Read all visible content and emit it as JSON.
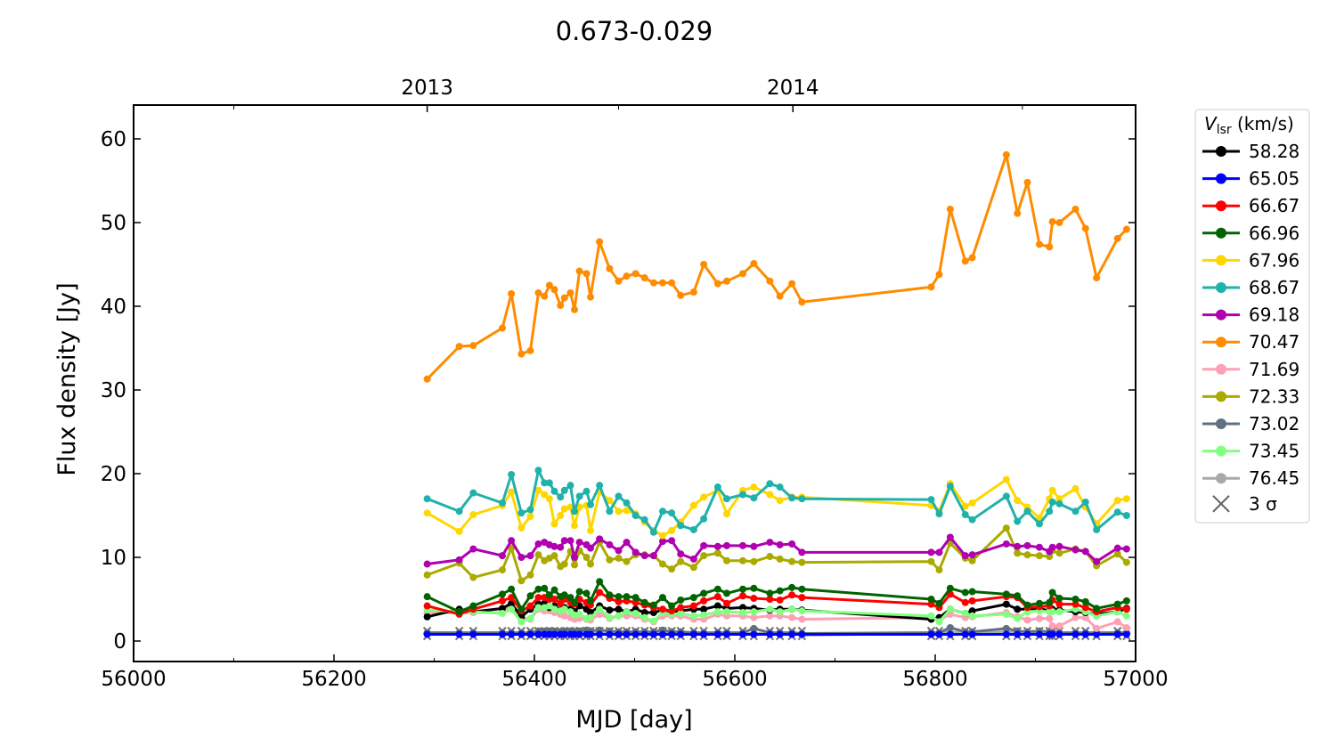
{
  "chart_data": {
    "type": "line",
    "title": "0.673-0.029",
    "xlabel": "MJD [day]",
    "ylabel": "Flux density [Jy]",
    "xlim": [
      56000,
      57000
    ],
    "ylim": [
      -2.3,
      64
    ],
    "xticks": [
      56000,
      56200,
      56400,
      56600,
      56800,
      57000
    ],
    "yticks": [
      0,
      10,
      20,
      30,
      40,
      50,
      60
    ],
    "top_axis": {
      "ticks": [
        {
          "label": "2013",
          "mjd": 56293
        },
        {
          "label": "2014",
          "mjd": 56658
        }
      ]
    },
    "legend": {
      "title": "V_lsr (km/s)",
      "title_main": "V",
      "title_sub": "lsr",
      "title_unit": " (km/s)",
      "placement": "outside-right",
      "sigma_label": "3 σ"
    },
    "x": [
      56293,
      56325,
      56339,
      56368,
      56377,
      56387,
      56396,
      56404,
      56410,
      56415,
      56420,
      56426,
      56430,
      56436,
      56440,
      56445,
      56452,
      56456,
      56465,
      56475,
      56484,
      56492,
      56501,
      56510,
      56519,
      56528,
      56537,
      56546,
      56559,
      56569,
      56583,
      56592,
      56608,
      56619,
      56635,
      56645,
      56657,
      56667,
      56796,
      56804,
      56815,
      56830,
      56837,
      56871,
      56882,
      56892,
      56904,
      56914,
      56917,
      56924,
      56940,
      56950,
      56961,
      56982,
      56991
    ],
    "series": [
      {
        "name": "58.28",
        "color": "#000000",
        "values": [
          2.9,
          3.8,
          3.5,
          3.9,
          4.5,
          2.9,
          3.8,
          4.4,
          4.5,
          4.0,
          4.2,
          3.7,
          4.0,
          3.8,
          3.5,
          4.2,
          3.8,
          3.4,
          4.2,
          3.7,
          3.8,
          3.5,
          3.8,
          3.4,
          3.4,
          3.7,
          3.4,
          3.6,
          3.8,
          3.8,
          4.2,
          3.9,
          4.0,
          3.9,
          3.7,
          3.8,
          3.8,
          3.7,
          2.6,
          2.8,
          3.8,
          3.3,
          3.6,
          4.4,
          3.8,
          3.8,
          3.9,
          3.6,
          3.8,
          3.7,
          3.5,
          3.4,
          3.2,
          3.5,
          3.9
        ]
      },
      {
        "name": "65.05",
        "color": "#0000ff",
        "values": [
          0.8,
          0.8,
          0.8,
          0.8,
          0.8,
          0.8,
          0.8,
          0.8,
          0.8,
          0.8,
          0.8,
          0.8,
          0.8,
          0.8,
          0.8,
          0.8,
          0.8,
          0.8,
          0.8,
          0.8,
          0.8,
          0.8,
          0.8,
          0.8,
          0.8,
          0.8,
          0.8,
          0.8,
          0.8,
          0.8,
          0.8,
          0.8,
          0.8,
          0.8,
          0.8,
          0.8,
          0.8,
          0.8,
          0.8,
          0.8,
          0.8,
          0.8,
          0.8,
          0.8,
          0.8,
          0.8,
          0.8,
          0.8,
          0.8,
          0.8,
          0.8,
          0.8,
          0.8,
          0.8,
          0.8
        ]
      },
      {
        "name": "66.67",
        "color": "#ff0000",
        "values": [
          4.2,
          3.2,
          3.8,
          4.8,
          5.2,
          3.6,
          4.2,
          5.2,
          5.2,
          5.0,
          5.0,
          4.5,
          5.0,
          4.6,
          4.4,
          5.0,
          4.6,
          4.3,
          5.8,
          5.1,
          4.7,
          4.8,
          4.6,
          4.3,
          4.0,
          3.8,
          3.6,
          4.0,
          4.2,
          4.8,
          5.3,
          4.5,
          5.4,
          5.1,
          5.0,
          4.9,
          5.5,
          5.2,
          4.4,
          4.0,
          5.6,
          4.6,
          4.8,
          5.3,
          5.2,
          4.0,
          4.1,
          4.2,
          4.9,
          4.4,
          4.4,
          4.0,
          3.5,
          4.0,
          3.8
        ]
      },
      {
        "name": "66.96",
        "color": "#006400",
        "values": [
          5.3,
          3.5,
          4.2,
          5.6,
          6.2,
          3.8,
          5.4,
          6.2,
          6.3,
          5.5,
          6.1,
          5.3,
          5.5,
          5.2,
          4.6,
          5.9,
          5.7,
          4.8,
          7.1,
          5.5,
          5.3,
          5.3,
          5.2,
          4.6,
          4.3,
          5.2,
          4.2,
          4.9,
          5.2,
          5.7,
          6.2,
          5.7,
          6.2,
          6.3,
          5.7,
          6.0,
          6.4,
          6.2,
          5.0,
          4.5,
          6.3,
          5.8,
          5.9,
          5.6,
          5.4,
          4.3,
          4.5,
          4.6,
          5.8,
          5.1,
          5.0,
          4.7,
          3.9,
          4.4,
          4.8
        ]
      },
      {
        "name": "67.96",
        "color": "#ffd700",
        "values": [
          15.3,
          13.1,
          15.1,
          16.2,
          17.8,
          13.5,
          14.9,
          18.0,
          17.5,
          17.0,
          14.0,
          15.0,
          15.8,
          16.0,
          13.8,
          16.0,
          16.2,
          13.2,
          17.8,
          16.8,
          15.5,
          15.6,
          15.2,
          14.2,
          13.2,
          12.6,
          13.2,
          14.2,
          16.2,
          17.2,
          18.0,
          15.2,
          18.0,
          18.4,
          17.5,
          16.8,
          17.2,
          17.2,
          16.2,
          15.5,
          18.8,
          16.1,
          16.5,
          19.3,
          16.8,
          16.0,
          14.7,
          17.0,
          18.0,
          17.0,
          18.2,
          16.0,
          14.0,
          16.8,
          17.0
        ]
      },
      {
        "name": "68.67",
        "color": "#20b2aa",
        "values": [
          17.0,
          15.5,
          17.7,
          16.5,
          19.9,
          15.3,
          15.7,
          20.4,
          18.9,
          18.9,
          17.9,
          17.2,
          18.0,
          18.6,
          15.5,
          17.3,
          17.9,
          16.3,
          18.6,
          15.5,
          17.3,
          16.5,
          15.0,
          14.5,
          13.0,
          15.5,
          15.3,
          13.8,
          13.3,
          14.6,
          18.4,
          17.0,
          17.5,
          17.1,
          18.8,
          18.4,
          17.1,
          17.0,
          16.9,
          15.2,
          18.5,
          15.1,
          14.5,
          17.3,
          14.3,
          15.5,
          14.0,
          15.5,
          16.6,
          16.4,
          15.5,
          16.6,
          13.3,
          15.4,
          15.0
        ]
      },
      {
        "name": "69.18",
        "color": "#b000b0",
        "values": [
          9.2,
          9.7,
          11.0,
          10.2,
          12.0,
          10.0,
          10.2,
          11.6,
          11.8,
          11.5,
          11.3,
          11.2,
          12.0,
          12.0,
          10.0,
          11.8,
          11.5,
          11.1,
          12.2,
          11.5,
          10.8,
          11.8,
          10.6,
          10.2,
          10.2,
          11.9,
          12.0,
          10.4,
          9.8,
          11.4,
          11.3,
          11.4,
          11.4,
          11.3,
          11.8,
          11.5,
          11.6,
          10.6,
          10.6,
          10.6,
          12.4,
          10.2,
          10.3,
          11.6,
          11.3,
          11.4,
          11.2,
          10.7,
          11.2,
          11.3,
          10.9,
          10.7,
          9.5,
          11.1,
          11.0
        ]
      },
      {
        "name": "70.47",
        "color": "#ff8c00",
        "values": [
          31.3,
          35.2,
          35.3,
          37.4,
          41.5,
          34.3,
          34.7,
          41.6,
          41.2,
          42.5,
          42.0,
          40.1,
          41.0,
          41.6,
          39.6,
          44.2,
          43.9,
          41.1,
          47.7,
          44.5,
          43.0,
          43.6,
          43.9,
          43.4,
          42.8,
          42.8,
          42.8,
          41.3,
          41.7,
          45.0,
          42.7,
          43.0,
          43.9,
          45.1,
          43.0,
          41.2,
          42.7,
          40.5,
          42.3,
          43.8,
          51.6,
          45.4,
          45.8,
          58.1,
          51.1,
          54.8,
          47.4,
          47.1,
          50.1,
          50.0,
          51.6,
          49.3,
          43.4,
          48.1,
          49.2
        ]
      },
      {
        "name": "71.69",
        "color": "#ffa0b4",
        "values": [
          3.4,
          3.4,
          3.4,
          3.4,
          4.2,
          2.8,
          2.6,
          3.8,
          3.6,
          3.6,
          3.4,
          3.2,
          3.0,
          2.8,
          2.6,
          2.7,
          2.6,
          2.5,
          3.2,
          2.7,
          3.0,
          3.0,
          3.0,
          2.6,
          2.3,
          3.0,
          3.0,
          3.0,
          2.6,
          2.6,
          3.2,
          3.0,
          3.0,
          2.8,
          3.0,
          3.0,
          2.8,
          2.6,
          2.8,
          2.5,
          3.2,
          2.8,
          2.9,
          3.4,
          2.9,
          2.5,
          2.7,
          2.7,
          1.8,
          1.8,
          2.8,
          2.8,
          1.5,
          2.3,
          1.6
        ]
      },
      {
        "name": "72.33",
        "color": "#aaaa00",
        "values": [
          7.9,
          9.3,
          7.6,
          8.5,
          11.1,
          7.2,
          7.9,
          10.3,
          9.6,
          9.9,
          10.2,
          8.9,
          9.2,
          10.7,
          9.1,
          10.8,
          10.0,
          9.2,
          11.8,
          9.7,
          9.9,
          9.5,
          10.3,
          10.3,
          10.2,
          9.2,
          8.6,
          9.5,
          8.8,
          10.2,
          10.5,
          9.6,
          9.6,
          9.5,
          10.1,
          9.8,
          9.5,
          9.4,
          9.5,
          8.5,
          11.7,
          9.9,
          9.6,
          13.5,
          10.5,
          10.3,
          10.2,
          10.1,
          10.8,
          10.5,
          11.0,
          10.7,
          9.0,
          10.4,
          9.4
        ]
      },
      {
        "name": "73.02",
        "color": "#607080",
        "values": [
          1.0,
          1.0,
          1.0,
          1.0,
          1.0,
          1.0,
          1.0,
          1.2,
          1.2,
          1.2,
          1.2,
          1.1,
          1.2,
          1.2,
          1.1,
          1.2,
          1.3,
          1.2,
          1.3,
          1.2,
          1.1,
          1.1,
          1.1,
          1.1,
          1.1,
          1.3,
          1.1,
          1.1,
          1.0,
          1.0,
          1.0,
          1.0,
          1.0,
          1.5,
          1.0,
          1.0,
          1.0,
          0.9,
          1.0,
          1.0,
          1.6,
          1.1,
          1.1,
          1.5,
          1.2,
          1.1,
          1.2,
          1.1,
          1.1,
          1.0,
          1.0,
          1.0,
          1.0,
          1.0,
          1.0
        ]
      },
      {
        "name": "73.45",
        "color": "#80ff80",
        "values": [
          3.7,
          3.5,
          3.5,
          3.3,
          3.8,
          2.3,
          2.7,
          4.0,
          4.0,
          4.2,
          3.8,
          3.6,
          3.8,
          3.5,
          3.1,
          3.2,
          2.7,
          2.8,
          3.8,
          2.8,
          3.0,
          3.5,
          3.3,
          2.8,
          2.4,
          3.4,
          3.2,
          3.3,
          3.0,
          3.1,
          3.5,
          3.5,
          3.4,
          3.5,
          3.8,
          3.5,
          3.8,
          3.6,
          3.0,
          2.3,
          3.8,
          3.3,
          3.0,
          3.2,
          2.7,
          3.5,
          3.6,
          3.5,
          3.5,
          3.5,
          3.8,
          3.5,
          3.0,
          3.5,
          3.0
        ]
      },
      {
        "name": "76.45",
        "color": "#a9a9a9",
        "values": [
          0.9,
          0.9,
          0.9,
          0.9,
          0.9,
          0.9,
          0.9,
          0.9,
          0.9,
          0.9,
          0.9,
          0.9,
          0.9,
          0.9,
          0.9,
          0.9,
          0.9,
          0.9,
          0.9,
          0.9,
          0.9,
          0.9,
          0.9,
          0.9,
          0.9,
          0.9,
          0.9,
          0.9,
          0.9,
          0.9,
          0.9,
          0.9,
          0.9,
          0.9,
          0.9,
          0.9,
          0.9,
          0.7,
          0.9,
          0.9,
          1.1,
          0.9,
          0.9,
          1.1,
          0.9,
          0.9,
          0.9,
          0.9,
          0.9,
          0.9,
          0.9,
          0.9,
          0.9,
          0.9,
          0.9
        ]
      }
    ],
    "sigma3": {
      "name": "3 σ",
      "color": "#606060",
      "values": [
        0.9,
        0.9,
        0.9,
        0.9,
        0.9,
        0.9,
        0.9,
        0.9,
        0.9,
        0.9,
        0.9,
        0.9,
        0.9,
        0.9,
        0.9,
        0.9,
        0.9,
        0.9,
        0.9,
        0.9,
        0.9,
        0.9,
        0.9,
        0.9,
        0.9,
        0.9,
        0.9,
        0.9,
        0.9,
        0.9,
        0.9,
        0.9,
        0.9,
        0.9,
        0.9,
        0.9,
        0.9,
        0.9,
        0.9,
        0.9,
        0.9,
        0.9,
        0.9,
        0.9,
        0.9,
        0.9,
        0.9,
        0.9,
        0.9,
        0.9,
        0.9,
        0.9,
        0.9,
        0.9,
        0.9
      ]
    }
  }
}
